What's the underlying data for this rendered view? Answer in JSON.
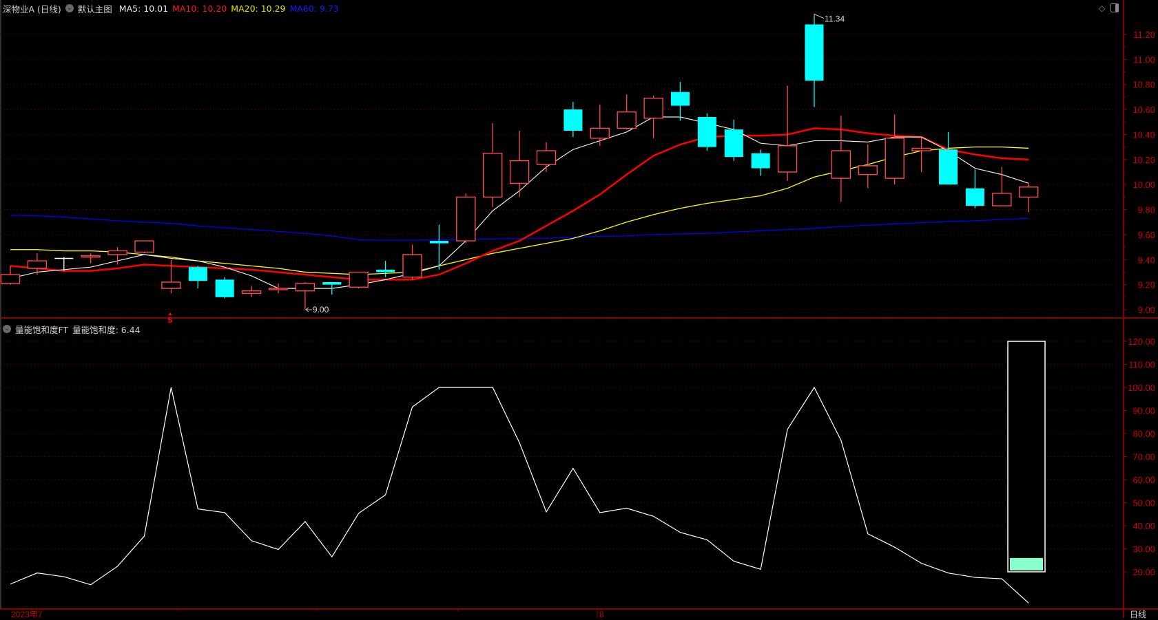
{
  "main_header": {
    "symbol": "深物业A (日线)",
    "template": "默认主图",
    "ma5": "MA5: 10.01",
    "ma10": "MA10: 10.20",
    "ma20": "MA20: 10.29",
    "ma60": "MA60: 9.73"
  },
  "indicator_header": {
    "name": "量能饱和度FT",
    "value": "量能饱和度: 6.44"
  },
  "timeframe_label": "日线",
  "colors": {
    "up": "#ff4a4a",
    "down": "#00ffff",
    "ma5": "#e8e8e8",
    "ma10": "#ff0000",
    "ma20": "#ffff00",
    "ma60": "#0000ff",
    "axis": "#8b0000",
    "axis_text": "#cc0000",
    "gauge_fill": "#88ffcc"
  },
  "icons": [
    "chevron-down-icon",
    "diamond-icon",
    "panel-toggle-icon"
  ],
  "markers": {
    "high_label": "11.34",
    "low_label": "9.00",
    "signal": "S"
  },
  "chart_data": [
    {
      "type": "candlestick",
      "ylim": [
        9.0,
        11.2
      ],
      "y_ticks": [
        "11.20",
        "11.00",
        "10.80",
        "10.60",
        "10.40",
        "10.20",
        "10.00",
        "9.80",
        "9.60",
        "9.40",
        "9.20",
        "9.00"
      ],
      "x_labels": [
        "2023年7",
        "8"
      ],
      "grid": true,
      "ohlc": [
        [
          9.21,
          9.35,
          9.2,
          9.28
        ],
        [
          9.33,
          9.45,
          9.28,
          9.39
        ],
        [
          9.41,
          9.42,
          9.31,
          9.41
        ],
        [
          9.42,
          9.45,
          9.37,
          9.43
        ],
        [
          9.44,
          9.5,
          9.36,
          9.47
        ],
        [
          9.46,
          9.55,
          9.45,
          9.55
        ],
        [
          9.17,
          9.4,
          9.13,
          9.22
        ],
        [
          9.34,
          9.35,
          9.17,
          9.23
        ],
        [
          9.24,
          9.26,
          9.09,
          9.1
        ],
        [
          9.13,
          9.19,
          9.1,
          9.15
        ],
        [
          9.16,
          9.21,
          9.13,
          9.17
        ],
        [
          9.15,
          9.22,
          9.0,
          9.21
        ],
        [
          9.22,
          9.22,
          9.12,
          9.2
        ],
        [
          9.18,
          9.3,
          9.17,
          9.3
        ],
        [
          9.32,
          9.39,
          9.26,
          9.3
        ],
        [
          9.26,
          9.52,
          9.24,
          9.44
        ],
        [
          9.55,
          9.68,
          9.32,
          9.53
        ],
        [
          9.55,
          9.93,
          9.53,
          9.9
        ],
        [
          9.9,
          10.49,
          9.82,
          10.25
        ],
        [
          10.01,
          10.43,
          9.9,
          10.19
        ],
        [
          10.16,
          10.34,
          10.1,
          10.27
        ],
        [
          10.6,
          10.66,
          10.38,
          10.43
        ],
        [
          10.37,
          10.64,
          10.31,
          10.45
        ],
        [
          10.45,
          10.72,
          10.44,
          10.58
        ],
        [
          10.53,
          10.71,
          10.37,
          10.69
        ],
        [
          10.74,
          10.82,
          10.51,
          10.63
        ],
        [
          10.54,
          10.57,
          10.27,
          10.3
        ],
        [
          10.44,
          10.52,
          10.19,
          10.22
        ],
        [
          10.25,
          10.28,
          10.07,
          10.13
        ],
        [
          10.1,
          10.79,
          10.03,
          10.31
        ],
        [
          11.28,
          11.34,
          10.62,
          10.83
        ],
        [
          10.05,
          10.55,
          9.86,
          10.27
        ],
        [
          10.08,
          10.32,
          9.97,
          10.15
        ],
        [
          10.05,
          10.56,
          10.0,
          10.37
        ],
        [
          10.27,
          10.38,
          10.1,
          10.29
        ],
        [
          10.28,
          10.42,
          10.0,
          10.0
        ],
        [
          9.97,
          10.12,
          9.81,
          9.83
        ],
        [
          9.83,
          10.14,
          9.83,
          9.93
        ],
        [
          9.9,
          10.01,
          9.78,
          9.98
        ]
      ],
      "series": [
        {
          "name": "MA5",
          "values": [
            9.25,
            9.3,
            9.32,
            9.34,
            9.39,
            9.44,
            9.41,
            9.39,
            9.34,
            9.27,
            9.17,
            9.17,
            9.17,
            9.2,
            9.24,
            9.29,
            9.35,
            9.55,
            9.79,
            9.95,
            10.14,
            10.28,
            10.35,
            10.42,
            10.54,
            10.54,
            10.49,
            10.44,
            10.33,
            10.31,
            10.35,
            10.35,
            10.34,
            10.38,
            10.38,
            10.27,
            10.13,
            10.08,
            10.01
          ]
        },
        {
          "name": "MA10",
          "values": [
            9.35,
            9.33,
            9.31,
            9.31,
            9.33,
            9.36,
            9.35,
            9.34,
            9.33,
            9.32,
            9.3,
            9.28,
            9.26,
            9.24,
            9.24,
            9.24,
            9.28,
            9.37,
            9.47,
            9.55,
            9.67,
            9.79,
            9.92,
            10.08,
            10.23,
            10.32,
            10.38,
            10.39,
            10.39,
            10.4,
            10.45,
            10.44,
            10.41,
            10.39,
            10.38,
            10.28,
            10.24,
            10.21,
            10.2
          ]
        },
        {
          "name": "MA20",
          "values": [
            9.48,
            9.48,
            9.47,
            9.47,
            9.46,
            9.44,
            9.42,
            9.39,
            9.37,
            9.35,
            9.33,
            9.3,
            9.29,
            9.28,
            9.29,
            9.3,
            9.35,
            9.4,
            9.45,
            9.49,
            9.53,
            9.57,
            9.63,
            9.7,
            9.76,
            9.81,
            9.85,
            9.88,
            9.91,
            9.97,
            10.06,
            10.11,
            10.16,
            10.22,
            10.27,
            10.29,
            10.3,
            10.3,
            10.29
          ]
        },
        {
          "name": "MA60",
          "values": [
            9.755,
            9.75,
            9.74,
            9.725,
            9.71,
            9.7,
            9.69,
            9.67,
            9.655,
            9.64,
            9.625,
            9.61,
            9.59,
            9.56,
            9.555,
            9.555,
            9.56,
            9.56,
            9.565,
            9.57,
            9.57,
            9.58,
            9.585,
            9.59,
            9.6,
            9.605,
            9.61,
            9.62,
            9.63,
            9.64,
            9.65,
            9.665,
            9.675,
            9.685,
            9.695,
            9.705,
            9.71,
            9.72,
            9.73
          ]
        }
      ]
    },
    {
      "type": "line",
      "ylim": [
        20,
        120
      ],
      "y_ticks": [
        "120.00",
        "110.00",
        "100.00",
        "90.00",
        "80.00",
        "70.00",
        "60.00",
        "50.00",
        "40.00",
        "30.00",
        "20.00"
      ],
      "grid": true,
      "series": [
        {
          "name": "量能饱和度",
          "values": [
            14.7,
            19.5,
            17.9,
            14.4,
            22.4,
            35.5,
            100,
            47.3,
            45.7,
            33.5,
            29.7,
            41.8,
            26.5,
            45.4,
            53.4,
            91.5,
            100,
            100,
            100,
            76,
            46,
            64.9,
            45.7,
            47.6,
            44.1,
            37.1,
            33.9,
            24.6,
            21.1,
            81.8,
            100,
            77,
            36.5,
            30.7,
            23.7,
            19.5,
            17.6,
            17,
            6.44
          ]
        }
      ],
      "gauge": {
        "range": [
          20,
          120
        ],
        "fill": [
          20,
          26
        ]
      }
    }
  ]
}
